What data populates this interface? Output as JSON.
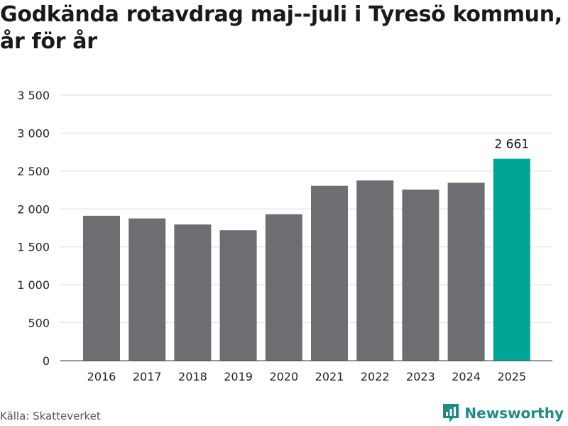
{
  "title": "Godkända rotavdrag maj--juli i Tyresö kommun, år för år",
  "source": "Källa: Skatteverket",
  "brand": {
    "name": "Newsworthy",
    "icon": "newsworthy-logo-icon"
  },
  "colors": {
    "bar": "#6e6d72",
    "highlight": "#00a598",
    "grid": "#dddddd",
    "brand": "#1e8b86"
  },
  "chart_data": {
    "type": "bar",
    "categories": [
      "2016",
      "2017",
      "2018",
      "2019",
      "2020",
      "2021",
      "2022",
      "2023",
      "2024",
      "2025"
    ],
    "values": [
      1910,
      1875,
      1795,
      1720,
      1930,
      2305,
      2375,
      2255,
      2345,
      2661
    ],
    "highlight_index": 9,
    "data_labels": [
      {
        "index": 9,
        "text": "2 661"
      }
    ],
    "y_ticks": [
      {
        "value": 0,
        "label": "0"
      },
      {
        "value": 500,
        "label": "500"
      },
      {
        "value": 1000,
        "label": "1 000"
      },
      {
        "value": 1500,
        "label": "1 500"
      },
      {
        "value": 2000,
        "label": "2 000"
      },
      {
        "value": 2500,
        "label": "2 500"
      },
      {
        "value": 3000,
        "label": "3 000"
      },
      {
        "value": 3500,
        "label": "3 500"
      }
    ],
    "ylim": [
      0,
      3500
    ],
    "grid": true,
    "legend": "none"
  }
}
